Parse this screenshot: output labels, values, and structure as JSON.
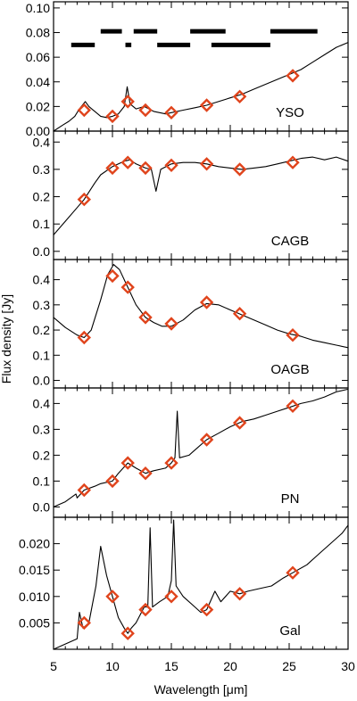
{
  "figure": {
    "xlabel": "Wavelength [μm]",
    "ylabel": "Flux density [Jy]",
    "xlim": [
      5,
      30
    ],
    "xticks": [
      "5",
      "10",
      "15",
      "20",
      "25",
      "30"
    ]
  },
  "colors": {
    "line": "#000000",
    "marker": "#e0441c",
    "bars": "#000000"
  },
  "chart_data": [
    {
      "type": "line",
      "label": "YSO",
      "ylim": [
        0,
        0.105
      ],
      "yticks": [
        "0.00",
        "0.02",
        "0.04",
        "0.06",
        "0.08",
        "0.10"
      ],
      "spectrum": [
        [
          5.0,
          0.0
        ],
        [
          5.8,
          0.005
        ],
        [
          6.3,
          0.008
        ],
        [
          6.8,
          0.012
        ],
        [
          7.2,
          0.018
        ],
        [
          7.7,
          0.024
        ],
        [
          8.0,
          0.02
        ],
        [
          8.5,
          0.016
        ],
        [
          9.0,
          0.012
        ],
        [
          9.5,
          0.011
        ],
        [
          10.0,
          0.012
        ],
        [
          10.5,
          0.014
        ],
        [
          11.0,
          0.02
        ],
        [
          11.25,
          0.036
        ],
        [
          11.5,
          0.022
        ],
        [
          12.0,
          0.018
        ],
        [
          12.7,
          0.02
        ],
        [
          13.5,
          0.016
        ],
        [
          14.5,
          0.014
        ],
        [
          15.0,
          0.015
        ],
        [
          16.0,
          0.017
        ],
        [
          17.0,
          0.019
        ],
        [
          18.0,
          0.021
        ],
        [
          19.0,
          0.024
        ],
        [
          20.0,
          0.027
        ],
        [
          21.0,
          0.03
        ],
        [
          22.0,
          0.034
        ],
        [
          23.0,
          0.038
        ],
        [
          24.0,
          0.042
        ],
        [
          25.0,
          0.046
        ],
        [
          26.0,
          0.05
        ],
        [
          27.0,
          0.056
        ],
        [
          28.0,
          0.062
        ],
        [
          29.0,
          0.068
        ],
        [
          30.0,
          0.072
        ]
      ],
      "markers": [
        [
          7.6,
          0.017
        ],
        [
          10.0,
          0.012
        ],
        [
          11.3,
          0.024
        ],
        [
          12.8,
          0.017
        ],
        [
          15.0,
          0.015
        ],
        [
          18.0,
          0.021
        ],
        [
          20.8,
          0.028
        ],
        [
          25.3,
          0.045
        ]
      ],
      "bars": [
        [
          6.5,
          8.5,
          0.07
        ],
        [
          9.0,
          10.8,
          0.081
        ],
        [
          11.1,
          11.6,
          0.07
        ],
        [
          11.8,
          13.8,
          0.081
        ],
        [
          13.8,
          16.6,
          0.07
        ],
        [
          16.6,
          19.6,
          0.081
        ],
        [
          18.4,
          23.4,
          0.07
        ],
        [
          23.4,
          27.4,
          0.081
        ]
      ]
    },
    {
      "type": "line",
      "label": "CAGB",
      "ylim": [
        -0.03,
        0.44
      ],
      "yticks": [
        "0.0",
        "0.1",
        "0.2",
        "0.3",
        "0.4"
      ],
      "spectrum": [
        [
          5.0,
          0.06
        ],
        [
          6.0,
          0.11
        ],
        [
          7.0,
          0.16
        ],
        [
          7.6,
          0.19
        ],
        [
          8.5,
          0.25
        ],
        [
          9.0,
          0.28
        ],
        [
          10.0,
          0.31
        ],
        [
          11.0,
          0.33
        ],
        [
          11.5,
          0.335
        ],
        [
          12.0,
          0.32
        ],
        [
          12.8,
          0.305
        ],
        [
          13.3,
          0.3
        ],
        [
          13.7,
          0.22
        ],
        [
          14.1,
          0.3
        ],
        [
          15.0,
          0.32
        ],
        [
          16.0,
          0.325
        ],
        [
          17.0,
          0.325
        ],
        [
          18.0,
          0.32
        ],
        [
          19.0,
          0.31
        ],
        [
          20.0,
          0.305
        ],
        [
          21.0,
          0.3
        ],
        [
          22.0,
          0.305
        ],
        [
          23.0,
          0.31
        ],
        [
          24.0,
          0.32
        ],
        [
          25.0,
          0.33
        ],
        [
          26.0,
          0.34
        ],
        [
          27.0,
          0.345
        ],
        [
          28.0,
          0.335
        ],
        [
          29.0,
          0.345
        ],
        [
          30.0,
          0.33
        ]
      ],
      "markers": [
        [
          7.6,
          0.19
        ],
        [
          10.0,
          0.305
        ],
        [
          11.3,
          0.325
        ],
        [
          12.8,
          0.305
        ],
        [
          15.0,
          0.315
        ],
        [
          18.0,
          0.32
        ],
        [
          20.8,
          0.3
        ],
        [
          25.3,
          0.325
        ]
      ],
      "bars": []
    },
    {
      "type": "line",
      "label": "OAGB",
      "ylim": [
        -0.03,
        0.48
      ],
      "yticks": [
        "0.0",
        "0.1",
        "0.2",
        "0.3",
        "0.4"
      ],
      "spectrum": [
        [
          5.0,
          0.25
        ],
        [
          6.0,
          0.21
        ],
        [
          7.0,
          0.18
        ],
        [
          7.6,
          0.17
        ],
        [
          8.2,
          0.2
        ],
        [
          9.0,
          0.32
        ],
        [
          9.6,
          0.42
        ],
        [
          10.1,
          0.46
        ],
        [
          10.6,
          0.44
        ],
        [
          11.3,
          0.37
        ],
        [
          12.0,
          0.3
        ],
        [
          12.8,
          0.25
        ],
        [
          13.5,
          0.23
        ],
        [
          14.2,
          0.215
        ],
        [
          15.0,
          0.215
        ],
        [
          16.0,
          0.24
        ],
        [
          17.0,
          0.28
        ],
        [
          18.0,
          0.305
        ],
        [
          19.0,
          0.3
        ],
        [
          20.0,
          0.28
        ],
        [
          21.0,
          0.26
        ],
        [
          22.0,
          0.24
        ],
        [
          23.0,
          0.22
        ],
        [
          24.0,
          0.2
        ],
        [
          25.0,
          0.185
        ],
        [
          26.0,
          0.175
        ],
        [
          27.0,
          0.16
        ],
        [
          28.0,
          0.15
        ],
        [
          29.0,
          0.14
        ],
        [
          30.0,
          0.13
        ]
      ],
      "markers": [
        [
          7.6,
          0.17
        ],
        [
          10.0,
          0.415
        ],
        [
          11.3,
          0.37
        ],
        [
          12.8,
          0.25
        ],
        [
          15.0,
          0.225
        ],
        [
          18.0,
          0.31
        ],
        [
          20.8,
          0.265
        ],
        [
          25.3,
          0.18
        ]
      ],
      "bars": []
    },
    {
      "type": "line",
      "label": "PN",
      "ylim": [
        -0.04,
        0.46
      ],
      "yticks": [
        "0.0",
        "0.1",
        "0.2",
        "0.3",
        "0.4"
      ],
      "spectrum": [
        [
          5.0,
          0.0
        ],
        [
          6.0,
          0.02
        ],
        [
          6.9,
          0.05
        ],
        [
          7.0,
          0.035
        ],
        [
          7.6,
          0.065
        ],
        [
          8.5,
          0.08
        ],
        [
          9.0,
          0.09
        ],
        [
          10.0,
          0.1
        ],
        [
          10.5,
          0.13
        ],
        [
          11.3,
          0.17
        ],
        [
          12.0,
          0.15
        ],
        [
          12.8,
          0.13
        ],
        [
          13.5,
          0.14
        ],
        [
          14.5,
          0.15
        ],
        [
          15.0,
          0.17
        ],
        [
          15.3,
          0.19
        ],
        [
          15.5,
          0.37
        ],
        [
          15.7,
          0.19
        ],
        [
          16.5,
          0.2
        ],
        [
          17.0,
          0.22
        ],
        [
          18.0,
          0.26
        ],
        [
          19.0,
          0.285
        ],
        [
          20.0,
          0.31
        ],
        [
          21.0,
          0.33
        ],
        [
          22.0,
          0.34
        ],
        [
          23.0,
          0.355
        ],
        [
          24.0,
          0.37
        ],
        [
          25.0,
          0.385
        ],
        [
          26.0,
          0.4
        ],
        [
          27.0,
          0.41
        ],
        [
          28.0,
          0.425
        ],
        [
          29.0,
          0.445
        ],
        [
          30.0,
          0.455
        ]
      ],
      "markers": [
        [
          7.6,
          0.065
        ],
        [
          10.0,
          0.1
        ],
        [
          11.3,
          0.17
        ],
        [
          12.8,
          0.13
        ],
        [
          15.0,
          0.17
        ],
        [
          18.0,
          0.26
        ],
        [
          20.8,
          0.325
        ],
        [
          25.3,
          0.39
        ]
      ],
      "bars": []
    },
    {
      "type": "line",
      "label": "Gal",
      "ylim": [
        0.0,
        0.025
      ],
      "yticks": [
        "0.005",
        "0.010",
        "0.015",
        "0.020"
      ],
      "spectrum": [
        [
          5.0,
          0.0
        ],
        [
          6.0,
          0.001
        ],
        [
          7.0,
          0.002
        ],
        [
          7.2,
          0.007
        ],
        [
          7.5,
          0.004
        ],
        [
          8.0,
          0.005
        ],
        [
          8.6,
          0.012
        ],
        [
          9.0,
          0.0195
        ],
        [
          9.5,
          0.014
        ],
        [
          10.0,
          0.01
        ],
        [
          10.5,
          0.006
        ],
        [
          11.0,
          0.004
        ],
        [
          11.3,
          0.003
        ],
        [
          11.6,
          0.004
        ],
        [
          12.0,
          0.005
        ],
        [
          12.7,
          0.008
        ],
        [
          13.0,
          0.008
        ],
        [
          13.2,
          0.023
        ],
        [
          13.4,
          0.008
        ],
        [
          14.0,
          0.009
        ],
        [
          14.7,
          0.01
        ],
        [
          15.0,
          0.013
        ],
        [
          15.2,
          0.0245
        ],
        [
          15.4,
          0.012
        ],
        [
          16.0,
          0.01
        ],
        [
          17.0,
          0.008
        ],
        [
          17.5,
          0.007
        ],
        [
          18.0,
          0.0075
        ],
        [
          18.7,
          0.011
        ],
        [
          19.2,
          0.009
        ],
        [
          20.0,
          0.011
        ],
        [
          20.8,
          0.0105
        ],
        [
          21.5,
          0.011
        ],
        [
          22.5,
          0.0115
        ],
        [
          23.5,
          0.012
        ],
        [
          24.5,
          0.0135
        ],
        [
          25.3,
          0.0145
        ],
        [
          26.5,
          0.016
        ],
        [
          27.5,
          0.018
        ],
        [
          28.5,
          0.02
        ],
        [
          29.5,
          0.022
        ],
        [
          30.0,
          0.0235
        ]
      ],
      "markers": [
        [
          7.6,
          0.005
        ],
        [
          10.0,
          0.01
        ],
        [
          11.3,
          0.003
        ],
        [
          12.8,
          0.0075
        ],
        [
          15.0,
          0.01
        ],
        [
          18.0,
          0.0075
        ],
        [
          20.8,
          0.0105
        ],
        [
          25.3,
          0.0145
        ]
      ],
      "bars": []
    }
  ]
}
